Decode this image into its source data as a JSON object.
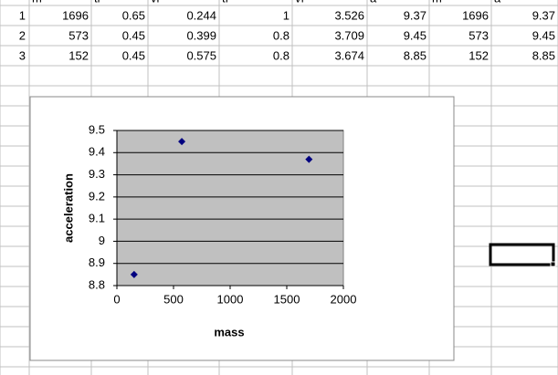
{
  "table": {
    "header": [
      "m",
      "ti",
      "vi",
      "tf",
      "vf",
      "a",
      "m",
      "a"
    ],
    "row_labels": [
      "1",
      "2",
      "3"
    ],
    "rows": [
      [
        1696,
        0.65,
        0.244,
        1,
        3.526,
        9.37,
        1696,
        9.37
      ],
      [
        573,
        0.45,
        0.399,
        0.8,
        3.709,
        9.45,
        573,
        9.45
      ],
      [
        152,
        0.45,
        0.575,
        0.8,
        3.674,
        8.85,
        152,
        8.85
      ]
    ]
  },
  "chart_data": {
    "type": "scatter",
    "x_label": "mass",
    "y_label": "acceleration",
    "x": [
      1696,
      573,
      152
    ],
    "values": [
      9.37,
      9.45,
      8.85
    ],
    "color": "#000080",
    "xlim": [
      0,
      2000
    ],
    "xticks": [
      0,
      500,
      1000,
      1500,
      2000
    ],
    "ylim": [
      8.8,
      9.5
    ],
    "yticks": [
      8.8,
      8.9,
      9,
      9.1,
      9.2,
      9.3,
      9.4,
      9.5
    ],
    "grid": true
  }
}
